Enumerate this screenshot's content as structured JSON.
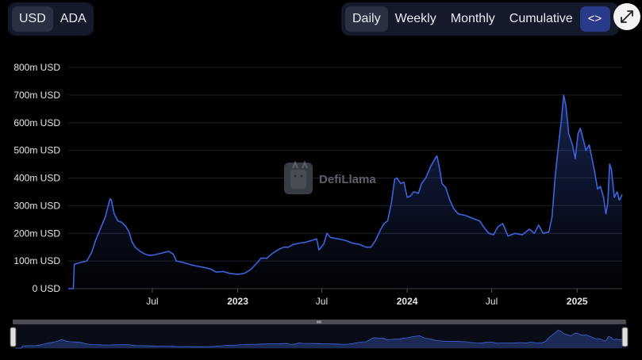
{
  "toolbar": {
    "currency": [
      "USD",
      "ADA"
    ],
    "currency_active": 0,
    "periods": [
      "Daily",
      "Weekly",
      "Monthly",
      "Cumulative"
    ],
    "period_active": 0,
    "code_icon": "<>",
    "expand_icon": "expand-icon"
  },
  "watermark": "DefiLlama",
  "colors": {
    "line": "#3d63dd",
    "accent": "#2a3a8a",
    "grid": "#1e2128"
  },
  "chart_data": {
    "type": "line",
    "title": "",
    "xlabel": "",
    "ylabel": "",
    "ylim": [
      0,
      800
    ],
    "y_ticks": [
      0,
      100,
      200,
      300,
      400,
      500,
      600,
      700,
      800
    ],
    "y_tick_labels": [
      "0 USD",
      "100m USD",
      "200m USD",
      "300m USD",
      "400m USD",
      "500m USD",
      "600m USD",
      "700m USD",
      "800m USD"
    ],
    "xlim": [
      "2022-01-01",
      "2025-04-08"
    ],
    "x_ticks": [
      "2022-07-01",
      "2023-01-01",
      "2023-07-01",
      "2024-01-01",
      "2024-07-01",
      "2025-01-01"
    ],
    "x_tick_labels": [
      "Jul",
      "2023",
      "Jul",
      "2024",
      "Jul",
      "2025"
    ],
    "x_tick_bold": [
      false,
      true,
      false,
      true,
      false,
      true
    ],
    "series": [
      {
        "name": "",
        "unit": "m USD",
        "points": [
          [
            "2022-01-01",
            0
          ],
          [
            "2022-01-12",
            0
          ],
          [
            "2022-01-14",
            88
          ],
          [
            "2022-01-28",
            95
          ],
          [
            "2022-02-10",
            100
          ],
          [
            "2022-02-20",
            130
          ],
          [
            "2022-03-01",
            175
          ],
          [
            "2022-03-12",
            220
          ],
          [
            "2022-03-22",
            260
          ],
          [
            "2022-03-28",
            300
          ],
          [
            "2022-04-01",
            325
          ],
          [
            "2022-04-04",
            320
          ],
          [
            "2022-04-10",
            270
          ],
          [
            "2022-04-18",
            245
          ],
          [
            "2022-04-26",
            240
          ],
          [
            "2022-05-05",
            225
          ],
          [
            "2022-05-12",
            205
          ],
          [
            "2022-05-18",
            170
          ],
          [
            "2022-05-25",
            150
          ],
          [
            "2022-06-05",
            135
          ],
          [
            "2022-06-15",
            125
          ],
          [
            "2022-06-25",
            120
          ],
          [
            "2022-07-05",
            122
          ],
          [
            "2022-07-20",
            128
          ],
          [
            "2022-08-05",
            135
          ],
          [
            "2022-08-15",
            125
          ],
          [
            "2022-08-22",
            100
          ],
          [
            "2022-09-05",
            95
          ],
          [
            "2022-09-25",
            85
          ],
          [
            "2022-10-10",
            80
          ],
          [
            "2022-10-25",
            75
          ],
          [
            "2022-11-05",
            70
          ],
          [
            "2022-11-15",
            60
          ],
          [
            "2022-12-01",
            62
          ],
          [
            "2022-12-15",
            55
          ],
          [
            "2023-01-01",
            52
          ],
          [
            "2023-01-15",
            55
          ],
          [
            "2023-01-28",
            68
          ],
          [
            "2023-02-10",
            90
          ],
          [
            "2023-02-20",
            110
          ],
          [
            "2023-03-05",
            110
          ],
          [
            "2023-03-15",
            125
          ],
          [
            "2023-03-28",
            140
          ],
          [
            "2023-04-10",
            150
          ],
          [
            "2023-04-20",
            150
          ],
          [
            "2023-05-01",
            160
          ],
          [
            "2023-05-15",
            165
          ],
          [
            "2023-05-28",
            168
          ],
          [
            "2023-06-10",
            175
          ],
          [
            "2023-06-20",
            180
          ],
          [
            "2023-06-25",
            140
          ],
          [
            "2023-07-05",
            160
          ],
          [
            "2023-07-12",
            200
          ],
          [
            "2023-07-20",
            185
          ],
          [
            "2023-08-05",
            180
          ],
          [
            "2023-08-20",
            175
          ],
          [
            "2023-09-05",
            165
          ],
          [
            "2023-09-20",
            160
          ],
          [
            "2023-10-05",
            150
          ],
          [
            "2023-10-15",
            150
          ],
          [
            "2023-10-25",
            175
          ],
          [
            "2023-11-05",
            215
          ],
          [
            "2023-11-12",
            235
          ],
          [
            "2023-11-20",
            245
          ],
          [
            "2023-11-28",
            310
          ],
          [
            "2023-12-05",
            395
          ],
          [
            "2023-12-10",
            400
          ],
          [
            "2023-12-18",
            380
          ],
          [
            "2023-12-25",
            385
          ],
          [
            "2024-01-01",
            330
          ],
          [
            "2024-01-08",
            335
          ],
          [
            "2024-01-15",
            350
          ],
          [
            "2024-01-25",
            345
          ],
          [
            "2024-02-01",
            380
          ],
          [
            "2024-02-10",
            400
          ],
          [
            "2024-02-20",
            440
          ],
          [
            "2024-03-01",
            470
          ],
          [
            "2024-03-05",
            480
          ],
          [
            "2024-03-10",
            440
          ],
          [
            "2024-03-16",
            380
          ],
          [
            "2024-03-24",
            365
          ],
          [
            "2024-04-02",
            320
          ],
          [
            "2024-04-10",
            290
          ],
          [
            "2024-04-20",
            270
          ],
          [
            "2024-05-05",
            265
          ],
          [
            "2024-05-20",
            255
          ],
          [
            "2024-06-05",
            245
          ],
          [
            "2024-06-15",
            220
          ],
          [
            "2024-06-25",
            200
          ],
          [
            "2024-07-05",
            195
          ],
          [
            "2024-07-15",
            225
          ],
          [
            "2024-07-25",
            235
          ],
          [
            "2024-08-05",
            190
          ],
          [
            "2024-08-20",
            200
          ],
          [
            "2024-09-05",
            195
          ],
          [
            "2024-09-20",
            215
          ],
          [
            "2024-10-01",
            200
          ],
          [
            "2024-10-10",
            230
          ],
          [
            "2024-10-20",
            200
          ],
          [
            "2024-11-01",
            205
          ],
          [
            "2024-11-08",
            260
          ],
          [
            "2024-11-15",
            410
          ],
          [
            "2024-11-22",
            520
          ],
          [
            "2024-11-28",
            610
          ],
          [
            "2024-12-03",
            700
          ],
          [
            "2024-12-08",
            660
          ],
          [
            "2024-12-14",
            560
          ],
          [
            "2024-12-22",
            520
          ],
          [
            "2024-12-28",
            470
          ],
          [
            "2025-01-03",
            560
          ],
          [
            "2025-01-08",
            580
          ],
          [
            "2025-01-14",
            540
          ],
          [
            "2025-01-20",
            500
          ],
          [
            "2025-01-27",
            520
          ],
          [
            "2025-02-02",
            470
          ],
          [
            "2025-02-08",
            420
          ],
          [
            "2025-02-14",
            360
          ],
          [
            "2025-02-20",
            370
          ],
          [
            "2025-02-27",
            330
          ],
          [
            "2025-03-04",
            270
          ],
          [
            "2025-03-08",
            310
          ],
          [
            "2025-03-12",
            450
          ],
          [
            "2025-03-16",
            430
          ],
          [
            "2025-03-22",
            330
          ],
          [
            "2025-03-28",
            350
          ],
          [
            "2025-04-02",
            320
          ],
          [
            "2025-04-08",
            340
          ]
        ]
      }
    ],
    "grid": true,
    "legend": "none",
    "brush": true
  }
}
